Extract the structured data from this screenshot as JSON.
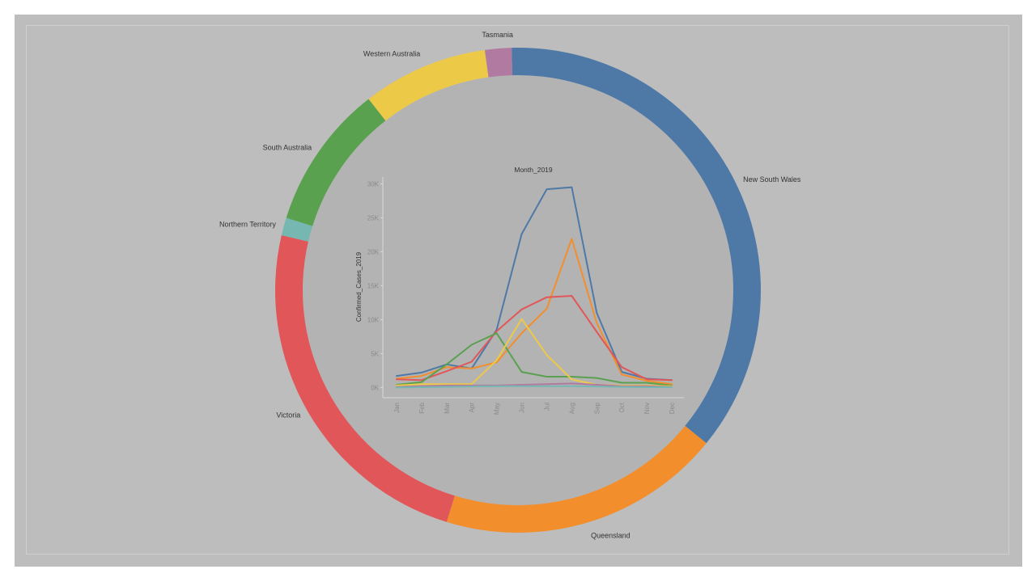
{
  "colors": {
    "background": "#bdbdbd",
    "inner_disc": "#b3b3b3",
    "grid": "#d9d9d9"
  },
  "chart_data": [
    {
      "type": "pie",
      "variant": "donut",
      "categories": [
        "New South Wales",
        "Queensland",
        "Victoria",
        "Northern Territory",
        "South Australia",
        "Western Australia",
        "Tasmania"
      ],
      "values": [
        36.9,
        19.2,
        24.3,
        1.2,
        9.8,
        8.5,
        1.8
      ],
      "colors": [
        "#4e79a7",
        "#f28e2b",
        "#e15759",
        "#76b7b2",
        "#59a14f",
        "#edc948",
        "#b07aa1"
      ]
    },
    {
      "type": "line",
      "title": "Month_2019",
      "xlabel": "",
      "ylabel": "Confirmed_Cases_2019",
      "categories": [
        "Jan",
        "Feb",
        "Mar",
        "Apr",
        "May",
        "Jun",
        "Jul",
        "Aug",
        "Sep",
        "Oct",
        "Nov",
        "Dec"
      ],
      "ylim": [
        -1500,
        31000
      ],
      "yticks": [
        0,
        5000,
        10000,
        15000,
        20000,
        25000,
        30000
      ],
      "ytick_labels": [
        "0K",
        "5K",
        "10K",
        "15K",
        "20K",
        "25K",
        "30K"
      ],
      "grid": false,
      "legend": "none",
      "series": [
        {
          "color": "#4e79a7",
          "values": [
            1700,
            2200,
            3400,
            2800,
            8500,
            22600,
            29200,
            29500,
            11000,
            2300,
            1300,
            1100
          ]
        },
        {
          "color": "#f28e2b",
          "values": [
            1300,
            1700,
            3000,
            2800,
            3700,
            8000,
            11600,
            21900,
            9500,
            1900,
            1000,
            500
          ]
        },
        {
          "color": "#e15759",
          "values": [
            1200,
            1100,
            2400,
            3800,
            8300,
            11500,
            13300,
            13500,
            8200,
            3000,
            1200,
            1100
          ]
        },
        {
          "color": "#59a14f",
          "values": [
            400,
            800,
            3400,
            6300,
            8000,
            2300,
            1600,
            1600,
            1400,
            700,
            700,
            300
          ]
        },
        {
          "color": "#edc948",
          "values": [
            300,
            500,
            500,
            500,
            4000,
            10100,
            4800,
            1200,
            400,
            300,
            300,
            200
          ]
        },
        {
          "color": "#b07aa1",
          "values": [
            100,
            200,
            300,
            300,
            300,
            400,
            500,
            600,
            400,
            200,
            200,
            100
          ]
        },
        {
          "color": "#76b7b2",
          "values": [
            0,
            50,
            100,
            150,
            200,
            200,
            200,
            200,
            150,
            100,
            50,
            50
          ]
        }
      ]
    }
  ]
}
